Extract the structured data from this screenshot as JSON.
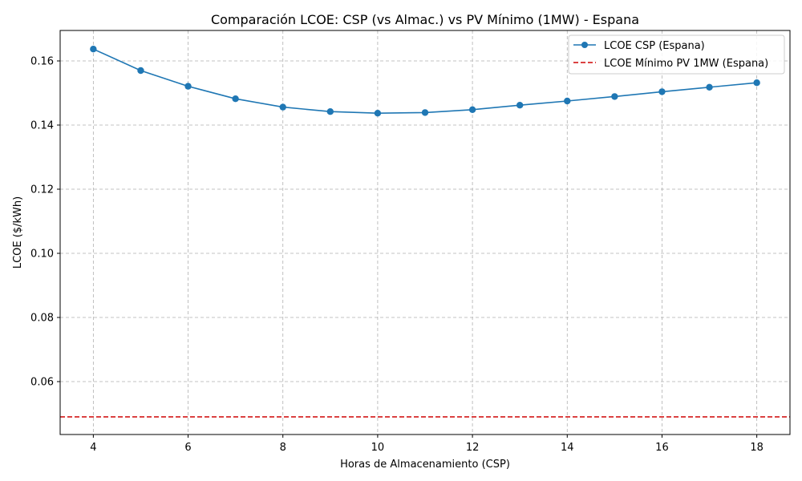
{
  "chart_data": {
    "type": "line",
    "title": "Comparación LCOE: CSP (vs Almac.) vs PV Mínimo (1MW) - Espana",
    "xlabel": "Horas de Almacenamiento (CSP)",
    "ylabel": "LCOE ($/kWh)",
    "xlim": [
      3.3,
      18.7
    ],
    "ylim": [
      0.0435,
      0.1695
    ],
    "x_ticks": [
      4,
      6,
      8,
      10,
      12,
      14,
      16,
      18
    ],
    "y_ticks": [
      0.06,
      0.08,
      0.1,
      0.12,
      0.14,
      0.16
    ],
    "y_tick_labels": [
      "0.06",
      "0.08",
      "0.10",
      "0.12",
      "0.14",
      "0.16"
    ],
    "grid": true,
    "legend_position": "top-right",
    "series": [
      {
        "name": "LCOE CSP (Espana)",
        "color": "#1f77b4",
        "style": "solid-marker",
        "x": [
          4,
          5,
          6,
          7,
          8,
          9,
          10,
          11,
          12,
          13,
          14,
          15,
          16,
          17,
          18
        ],
        "y": [
          0.1637,
          0.157,
          0.1521,
          0.1482,
          0.1456,
          0.1442,
          0.1437,
          0.1439,
          0.1448,
          0.1462,
          0.1475,
          0.1489,
          0.1504,
          0.1518,
          0.1532
        ]
      },
      {
        "name": "LCOE Mínimo PV 1MW (Espana)",
        "color": "#d62728",
        "style": "dashed-hline",
        "y_value": 0.049
      }
    ]
  }
}
